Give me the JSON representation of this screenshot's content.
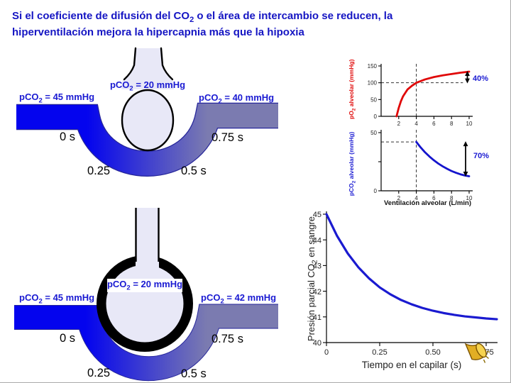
{
  "title": {
    "line1_pre": "Si el coeficiente de difusión del CO",
    "line1_sub": "2",
    "line1_post": " o el área de intercambio se reducen, la",
    "line2": "hiperventilación mejora la hipercapnia más que la hipoxia"
  },
  "colors": {
    "title_blue": "#1515c3",
    "label_blue": "#1a1ad2",
    "capillary_blue": "#0404ee",
    "capillary_gray": "#7b7bb0",
    "capillary_edge": "#26269a",
    "alveolus_fill": "#e8e8f7",
    "red_curve": "#e00808",
    "blue_curve": "#1414cc"
  },
  "icons": {
    "speaker": "🔊"
  },
  "diagram1": {
    "alveolus_label": {
      "pre": "pCO",
      "sub": "2",
      "post": " = 20 mmHg"
    },
    "inflow_label": {
      "pre": "pCO",
      "sub": "2",
      "post": " = 45 mmHg"
    },
    "outflow_label": {
      "pre": "pCO",
      "sub": "2",
      "post": " = 40 mmHg"
    },
    "time_0": "0 s",
    "time_25": "0.25",
    "time_50": "0.5 s",
    "time_75": "0.75 s"
  },
  "diagram2": {
    "alveolus_label": {
      "pre": "pCO",
      "sub": "2",
      "post": " = 20 mmHg"
    },
    "inflow_label": {
      "pre": "pCO",
      "sub": "2",
      "post": " = 45 mmHg"
    },
    "outflow_label": {
      "pre": "pCO",
      "sub": "2",
      "post": " = 42 mmHg"
    },
    "time_0": "0 s",
    "time_25": "0.25",
    "time_50": "0.5 s",
    "time_75": "0.75 s"
  },
  "chart_data": [
    {
      "id": "chart-po2",
      "type": "line",
      "ylabel": "pO2 alveolar (mmHg)",
      "ylabel_parts": {
        "pre": "pO",
        "sub": "2",
        "post": " alveolar (mmHg)"
      },
      "xlabel": "",
      "xlim": [
        0,
        10
      ],
      "ylim": [
        0,
        150
      ],
      "xticks": [
        2,
        4,
        6,
        8,
        10
      ],
      "yticks": [
        0,
        50,
        100,
        150
      ],
      "grid": false,
      "ref_lines": {
        "h": 100,
        "h_range": [
          0,
          9.3
        ],
        "v": 4
      },
      "series": [
        {
          "name": "pO2 alveolar",
          "color": "#e00808",
          "x": [
            1.75,
            2,
            2.25,
            2.5,
            3,
            3.5,
            4,
            5,
            6,
            7,
            8,
            9,
            10
          ],
          "y": [
            0,
            25,
            45,
            60,
            80,
            91,
            100,
            110,
            117,
            122,
            126,
            130,
            133
          ]
        }
      ],
      "annotation": {
        "label": "40%",
        "x": 9.8,
        "y1": 133,
        "y2": 100
      }
    },
    {
      "id": "chart-pco2",
      "type": "line",
      "ylabel": "pCO2 alveolar (mmHg)",
      "ylabel_parts": {
        "pre": "pCO",
        "sub": "2",
        "post": " alveolar (mmHg)"
      },
      "xlabel": "Ventilación alveolar (L/min)",
      "xlim": [
        0,
        10
      ],
      "ylim": [
        0,
        50
      ],
      "xticks": [
        2,
        4,
        6,
        8,
        10
      ],
      "yticks": [
        0,
        25,
        50
      ],
      "ytick_labels": [
        "0",
        "",
        "50"
      ],
      "grid": false,
      "ref_lines": {
        "h": 42,
        "h_range": [
          0,
          4
        ],
        "v": 4
      },
      "series": [
        {
          "name": "pCO2 alveolar",
          "color": "#1414cc",
          "x": [
            4,
            4.5,
            5,
            5.5,
            6,
            6.5,
            7,
            7.5,
            8,
            8.5,
            9,
            9.5,
            10
          ],
          "y": [
            42,
            37.2,
            33,
            29.4,
            26.2,
            23.4,
            21,
            18.9,
            17,
            15.5,
            14.2,
            13.2,
            12.5
          ]
        }
      ],
      "annotation": {
        "label": "70%",
        "x": 9.6,
        "y1": 42,
        "y2": 12.8
      }
    },
    {
      "id": "chart-capilar",
      "type": "line",
      "ylabel": "Presión parcial CO2 en sangre",
      "ylabel_parts": {
        "pre": "Presión parcial CO",
        "sub": "2",
        "post": " en sangre"
      },
      "xlabel": "Tiempo en el capilar (s)",
      "xlim": [
        0,
        0.8
      ],
      "ylim": [
        40,
        45
      ],
      "xticks": [
        0,
        0.25,
        0.5,
        0.75
      ],
      "xtick_labels": [
        "0",
        "0.25",
        "0.50",
        "0.75"
      ],
      "yticks": [
        40,
        41,
        42,
        43,
        44,
        45
      ],
      "grid": false,
      "series": [
        {
          "name": "pCO2 en sangre",
          "color": "#1a1ad0",
          "x": [
            0,
            0.05,
            0.1,
            0.15,
            0.2,
            0.25,
            0.3,
            0.35,
            0.4,
            0.45,
            0.5,
            0.55,
            0.6,
            0.65,
            0.7,
            0.75,
            0.8
          ],
          "y": [
            45,
            44.15,
            43.47,
            42.93,
            42.5,
            42.15,
            41.88,
            41.66,
            41.49,
            41.35,
            41.24,
            41.15,
            41.08,
            41.02,
            40.98,
            40.94,
            40.91
          ]
        }
      ]
    }
  ]
}
